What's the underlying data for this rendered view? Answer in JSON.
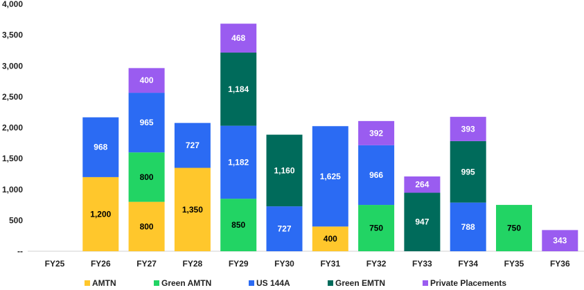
{
  "chart_data": {
    "type": "bar",
    "stacked": true,
    "categories": [
      "FY25",
      "FY26",
      "FY27",
      "FY28",
      "FY29",
      "FY30",
      "FY31",
      "FY32",
      "FY33",
      "FY34",
      "FY35",
      "FY36"
    ],
    "series": [
      {
        "name": "AMTN",
        "color": "#FFC72C",
        "label_color": "#000000",
        "values": [
          0,
          1200,
          800,
          1350,
          0,
          0,
          400,
          0,
          0,
          0,
          0,
          0
        ]
      },
      {
        "name": "Green AMTN",
        "color": "#22D464",
        "label_color": "#000000",
        "values": [
          0,
          0,
          800,
          0,
          850,
          0,
          0,
          750,
          0,
          0,
          750,
          0
        ]
      },
      {
        "name": "US 144A",
        "color": "#2B6BF3",
        "label_color": "#ffffff",
        "values": [
          0,
          968,
          965,
          727,
          1182,
          727,
          1625,
          966,
          0,
          788,
          0,
          0
        ]
      },
      {
        "name": "Green EMTN",
        "color": "#006B5B",
        "label_color": "#ffffff",
        "values": [
          0,
          0,
          0,
          0,
          1184,
          1160,
          0,
          0,
          947,
          995,
          0,
          0
        ]
      },
      {
        "name": "Private Placements",
        "color": "#9A5CF0",
        "label_color": "#ffffff",
        "values": [
          0,
          0,
          400,
          0,
          468,
          0,
          0,
          392,
          264,
          393,
          0,
          343
        ]
      }
    ],
    "data_labels": [
      [
        "",
        "",
        "",
        "",
        ""
      ],
      [
        "1,200",
        "",
        "968",
        "",
        ""
      ],
      [
        "800",
        "800",
        "965",
        "",
        "400"
      ],
      [
        "1,350",
        "",
        "727",
        "",
        ""
      ],
      [
        "",
        "850",
        "1,182",
        "1,184",
        "468"
      ],
      [
        "",
        "",
        "727",
        "1,160",
        ""
      ],
      [
        "400",
        "",
        "1,625",
        "",
        ""
      ],
      [
        "",
        "750",
        "966",
        "",
        "392"
      ],
      [
        "",
        "",
        "",
        "947",
        "264"
      ],
      [
        "",
        "",
        "788",
        "995",
        "393"
      ],
      [
        "",
        "750",
        "",
        "",
        ""
      ],
      [
        "",
        "",
        "",
        "",
        "343"
      ]
    ],
    "y_ticks": [
      0,
      500,
      1000,
      1500,
      2000,
      2500,
      3000,
      3500,
      4000
    ],
    "y_tick_labels": [
      "--",
      "500",
      "1,000",
      "1,500",
      "2,000",
      "2,500",
      "3,000",
      "3,500",
      "4,000"
    ],
    "ylim": [
      0,
      4000
    ],
    "grid": false,
    "legend_position": "bottom",
    "title": "",
    "xlabel": "",
    "ylabel": ""
  }
}
